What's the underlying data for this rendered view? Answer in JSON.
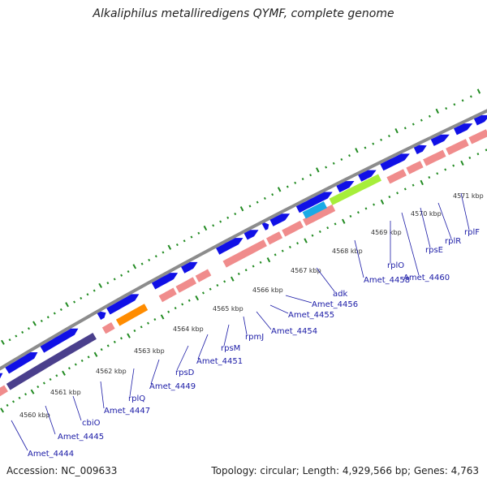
{
  "title": "Alkaliphilus metalliredigens QYMF, complete genome",
  "footer": {
    "accession": "Accession: NC_009633",
    "summary": "Topology: circular; Length: 4,929,566 bp; Genes: 4,763"
  },
  "colors": {
    "backbone": "#8c8c8c",
    "cds": "#1010e6",
    "rna_pink": "#f08c8c",
    "dots": "#228b22",
    "labels": "#1a1aa6",
    "orange": "#ff8c00",
    "cyan": "#1aaae6",
    "lime": "#a6ee3a",
    "dark_purple": "#4a3f8c"
  },
  "ticks": [
    {
      "label": "4560 kbp"
    },
    {
      "label": "4561 kbp"
    },
    {
      "label": "4562 kbp"
    },
    {
      "label": "4563 kbp"
    },
    {
      "label": "4564 kbp"
    },
    {
      "label": "4565 kbp"
    },
    {
      "label": "4566 kbp"
    },
    {
      "label": "4567 kbp"
    },
    {
      "label": "4568 kbp"
    },
    {
      "label": "4569 kbp"
    },
    {
      "label": "4570 kbp"
    },
    {
      "label": "4571 kbp"
    }
  ],
  "genes": [
    {
      "label": "Amet_4444"
    },
    {
      "label": "Amet_4445"
    },
    {
      "label": "cbiO"
    },
    {
      "label": "Amet_4447"
    },
    {
      "label": "rplQ"
    },
    {
      "label": "Amet_4449"
    },
    {
      "label": "rpsD"
    },
    {
      "label": "Amet_4451"
    },
    {
      "label": "rpsM"
    },
    {
      "label": "rpmJ"
    },
    {
      "label": "Amet_4454"
    },
    {
      "label": "Amet_4455"
    },
    {
      "label": "Amet_4456"
    },
    {
      "label": "adk"
    },
    {
      "label": "Amet_4458"
    },
    {
      "label": "rplO"
    },
    {
      "label": "Amet_4460"
    },
    {
      "label": "rpsE"
    },
    {
      "label": "rplR"
    },
    {
      "label": "rplF"
    }
  ]
}
